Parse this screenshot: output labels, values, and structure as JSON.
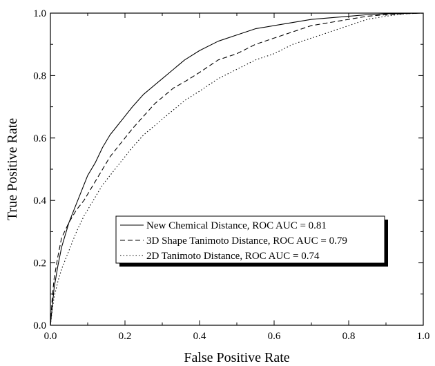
{
  "chart_data": {
    "type": "line",
    "title": "",
    "xlabel": "False Positive Rate",
    "ylabel": "True Positive Rate",
    "xlim": [
      0.0,
      1.0
    ],
    "ylim": [
      0.0,
      1.0
    ],
    "x_ticks": [
      0.0,
      0.2,
      0.4,
      0.6,
      0.8,
      1.0
    ],
    "y_ticks": [
      0.0,
      0.2,
      0.4,
      0.6,
      0.8,
      1.0
    ],
    "x_tick_labels": [
      "0.0",
      "0.2",
      "0.4",
      "0.6",
      "0.8",
      "1.0"
    ],
    "y_tick_labels": [
      "0.0",
      "0.2",
      "0.4",
      "0.6",
      "0.8",
      "1.0"
    ],
    "grid": false,
    "legend_position": "lower-right",
    "series": [
      {
        "name": "New Chemical Distance, ROC AUC = 0.81",
        "line_style": "solid",
        "x": [
          0.0,
          0.005,
          0.01,
          0.02,
          0.03,
          0.05,
          0.07,
          0.09,
          0.1,
          0.12,
          0.14,
          0.16,
          0.18,
          0.2,
          0.22,
          0.25,
          0.28,
          0.3,
          0.33,
          0.36,
          0.4,
          0.45,
          0.5,
          0.55,
          0.6,
          0.65,
          0.7,
          0.75,
          0.8,
          0.85,
          0.9,
          0.95,
          1.0
        ],
        "y": [
          0.0,
          0.06,
          0.12,
          0.19,
          0.25,
          0.33,
          0.39,
          0.45,
          0.48,
          0.52,
          0.57,
          0.61,
          0.64,
          0.67,
          0.7,
          0.74,
          0.77,
          0.79,
          0.82,
          0.85,
          0.88,
          0.91,
          0.93,
          0.95,
          0.96,
          0.97,
          0.98,
          0.985,
          0.99,
          0.995,
          0.998,
          0.999,
          1.0
        ]
      },
      {
        "name": "3D Shape Tanimoto Distance, ROC AUC = 0.79",
        "line_style": "dashed",
        "x": [
          0.0,
          0.005,
          0.01,
          0.02,
          0.03,
          0.05,
          0.07,
          0.09,
          0.1,
          0.12,
          0.14,
          0.16,
          0.18,
          0.2,
          0.22,
          0.25,
          0.28,
          0.3,
          0.33,
          0.36,
          0.4,
          0.45,
          0.5,
          0.55,
          0.6,
          0.65,
          0.7,
          0.75,
          0.8,
          0.85,
          0.9,
          0.95,
          1.0
        ],
        "y": [
          0.0,
          0.09,
          0.15,
          0.22,
          0.28,
          0.33,
          0.37,
          0.4,
          0.42,
          0.46,
          0.5,
          0.54,
          0.57,
          0.6,
          0.63,
          0.67,
          0.71,
          0.73,
          0.76,
          0.78,
          0.81,
          0.85,
          0.87,
          0.9,
          0.92,
          0.94,
          0.96,
          0.97,
          0.98,
          0.99,
          0.995,
          0.998,
          1.0
        ]
      },
      {
        "name": "2D Tanimoto Distance, ROC AUC = 0.74",
        "line_style": "dotted",
        "x": [
          0.0,
          0.005,
          0.01,
          0.02,
          0.03,
          0.05,
          0.07,
          0.09,
          0.1,
          0.12,
          0.14,
          0.16,
          0.18,
          0.2,
          0.22,
          0.25,
          0.28,
          0.3,
          0.33,
          0.36,
          0.4,
          0.45,
          0.5,
          0.55,
          0.6,
          0.65,
          0.7,
          0.75,
          0.8,
          0.85,
          0.9,
          0.95,
          1.0
        ],
        "y": [
          0.0,
          0.05,
          0.09,
          0.14,
          0.18,
          0.24,
          0.3,
          0.35,
          0.37,
          0.41,
          0.45,
          0.48,
          0.51,
          0.54,
          0.57,
          0.61,
          0.64,
          0.66,
          0.69,
          0.72,
          0.75,
          0.79,
          0.82,
          0.85,
          0.87,
          0.9,
          0.92,
          0.94,
          0.96,
          0.98,
          0.99,
          0.998,
          1.0
        ]
      }
    ]
  }
}
